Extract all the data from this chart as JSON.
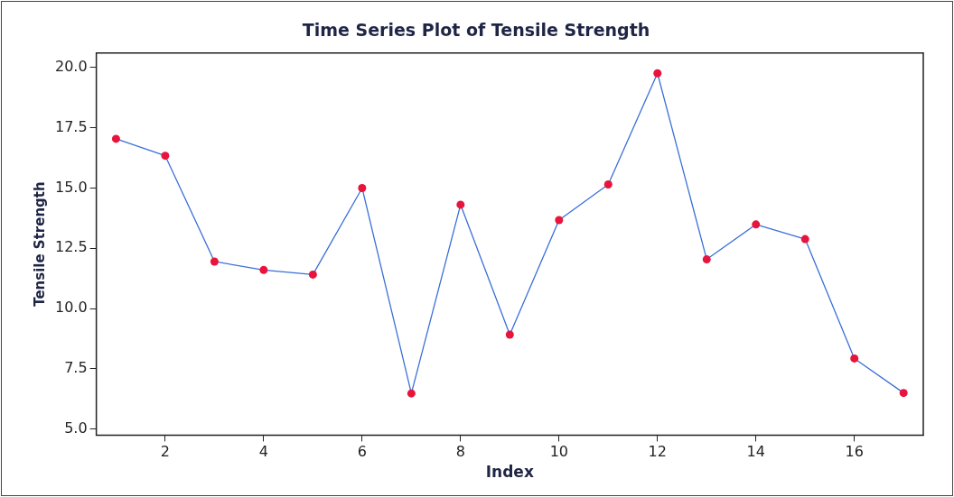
{
  "chart_data": {
    "type": "line",
    "title": "Time Series Plot of Tensile Strength",
    "xlabel": "Index",
    "ylabel": "Tensile Strength",
    "x": [
      1,
      2,
      3,
      4,
      5,
      6,
      7,
      8,
      9,
      10,
      11,
      12,
      13,
      14,
      15,
      16,
      17
    ],
    "series": [
      {
        "color": "#3a6fd8",
        "colors": [
          "#e8143c",
          "#e8143c",
          "#e8143c",
          "#e8143c",
          "#e8143c",
          "#e8143c",
          "#e8143c",
          "#e8143c",
          "#e8143c",
          "#e8143c",
          "#e8143c",
          "#e8143c",
          "#e8143c",
          "#e8143c",
          "#e8143c",
          "#e8143c",
          "#e8143c"
        ],
        "values": [
          17.04,
          16.34,
          11.95,
          11.6,
          11.41,
          15.0,
          6.48,
          14.31,
          8.92,
          13.67,
          15.15,
          19.76,
          12.04,
          13.49,
          12.88,
          7.93,
          6.5
        ]
      }
    ],
    "xlim": [
      0.6,
      17.4
    ],
    "xticks": [
      2,
      4,
      6,
      8,
      10,
      12,
      14,
      16
    ],
    "ylim": [
      4.75,
      20.6
    ],
    "yticks": [
      {
        "value": 5,
        "label": "5.0"
      },
      {
        "value": 7.5,
        "label": "7.5"
      },
      {
        "value": 10,
        "label": "10.0"
      },
      {
        "value": 12.5,
        "label": "12.5"
      },
      {
        "value": 15,
        "label": "15.0"
      },
      {
        "value": 17.5,
        "label": "17.5"
      },
      {
        "value": 20,
        "label": "20.0"
      }
    ],
    "grid": false,
    "legend": false,
    "marker": "circle",
    "line_style": "solid"
  }
}
